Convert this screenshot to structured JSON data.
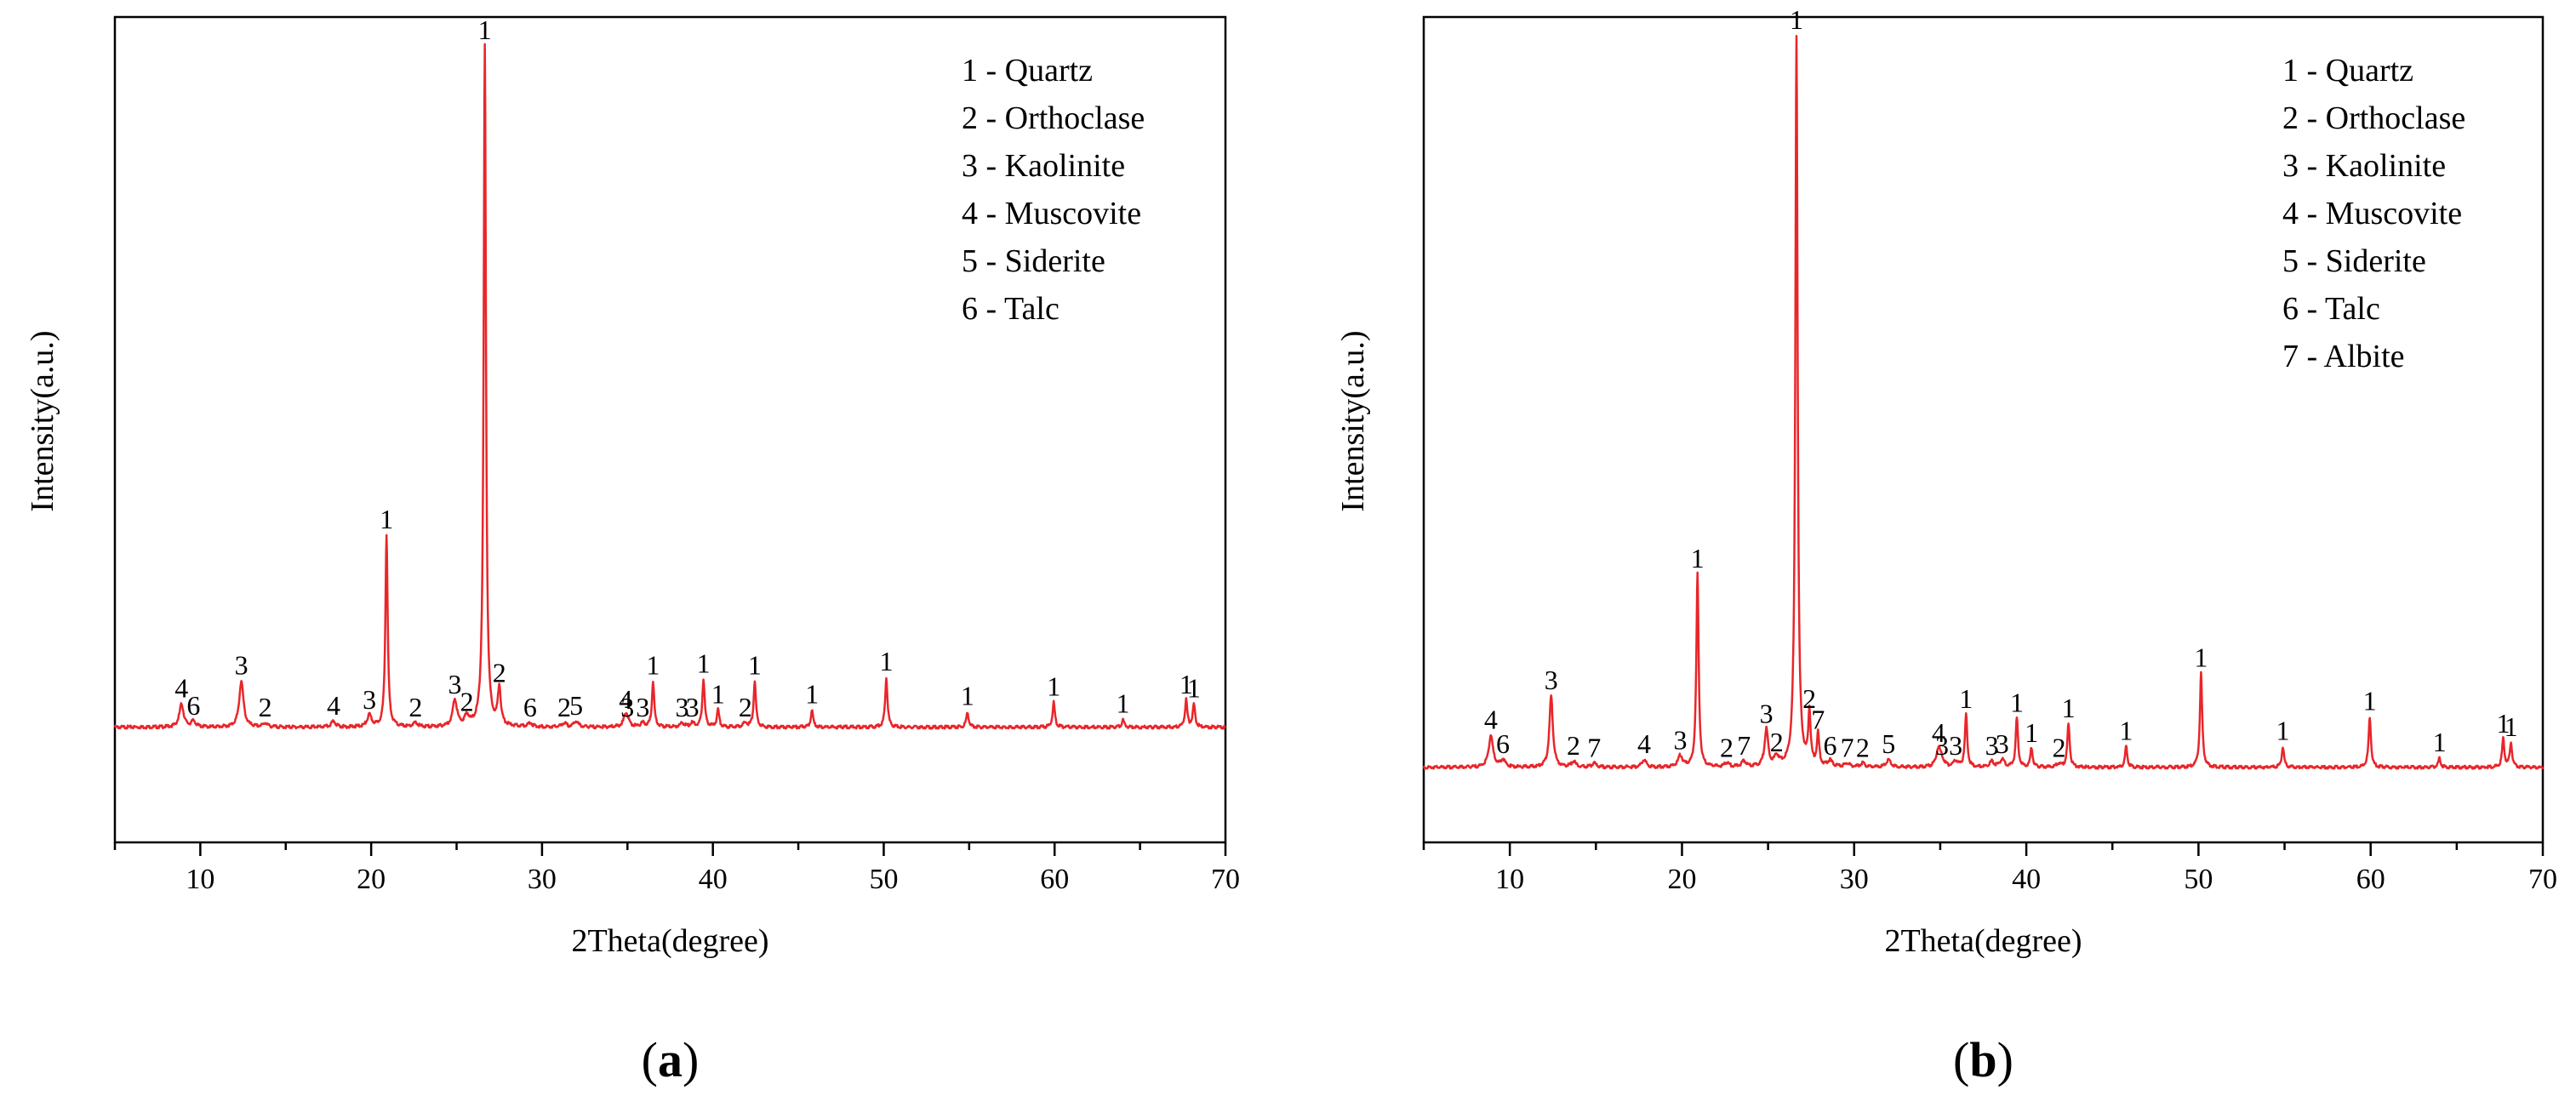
{
  "chart_data": [
    {
      "id": "a",
      "type": "line",
      "panel_label": "(a)",
      "panel_letter": "a",
      "xlabel": "2Theta(degree)",
      "ylabel": "Intensity(a.u.)",
      "xlim": [
        5,
        70
      ],
      "ylim": [
        -6,
        37
      ],
      "xticks": [
        10,
        20,
        30,
        40,
        50,
        60,
        70
      ],
      "grid": false,
      "line_color": "#e8262a",
      "legend_position": "top-right",
      "legend": [
        "1 - Quartz",
        "2 - Orthoclase",
        "3 - Kaolinite",
        "4 - Muscovite",
        "5 - Siderite",
        "6 - Talc"
      ],
      "baseline": 0,
      "peaks": [
        {
          "x": 8.9,
          "h": 1.2,
          "w": 0.15,
          "label": "4"
        },
        {
          "x": 9.6,
          "h": 0.3,
          "w": 0.15,
          "label": "6"
        },
        {
          "x": 12.4,
          "h": 2.4,
          "w": 0.15,
          "label": "3"
        },
        {
          "x": 13.8,
          "h": 0.2,
          "w": 0.15,
          "label": "2"
        },
        {
          "x": 17.8,
          "h": 0.3,
          "w": 0.15,
          "label": "4"
        },
        {
          "x": 19.9,
          "h": 0.6,
          "w": 0.15,
          "label": "3"
        },
        {
          "x": 20.9,
          "h": 10.0,
          "w": 0.08,
          "label": "1"
        },
        {
          "x": 22.6,
          "h": 0.2,
          "w": 0.15,
          "label": "2"
        },
        {
          "x": 24.9,
          "h": 1.4,
          "w": 0.15,
          "label": "3"
        },
        {
          "x": 25.6,
          "h": 0.5,
          "w": 0.15,
          "label": "2"
        },
        {
          "x": 26.65,
          "h": 35.5,
          "w": 0.08,
          "label": "1"
        },
        {
          "x": 27.5,
          "h": 2.0,
          "w": 0.1,
          "label": "2"
        },
        {
          "x": 29.3,
          "h": 0.2,
          "w": 0.15,
          "label": "6"
        },
        {
          "x": 31.3,
          "h": 0.2,
          "w": 0.15,
          "label": "2"
        },
        {
          "x": 32.0,
          "h": 0.3,
          "w": 0.15,
          "label": "5"
        },
        {
          "x": 34.9,
          "h": 0.6,
          "w": 0.15,
          "label": "4"
        },
        {
          "x": 35.0,
          "h": 0.2,
          "w": 0.15,
          "label": "3"
        },
        {
          "x": 35.9,
          "h": 0.2,
          "w": 0.15,
          "label": "3"
        },
        {
          "x": 36.5,
          "h": 2.4,
          "w": 0.08,
          "label": "1"
        },
        {
          "x": 38.2,
          "h": 0.2,
          "w": 0.15,
          "label": "3"
        },
        {
          "x": 38.8,
          "h": 0.2,
          "w": 0.15,
          "label": "3"
        },
        {
          "x": 39.45,
          "h": 2.5,
          "w": 0.08,
          "label": "1"
        },
        {
          "x": 40.3,
          "h": 0.9,
          "w": 0.08,
          "label": "1"
        },
        {
          "x": 41.9,
          "h": 0.2,
          "w": 0.15,
          "label": "2"
        },
        {
          "x": 42.45,
          "h": 2.4,
          "w": 0.08,
          "label": "1"
        },
        {
          "x": 45.8,
          "h": 0.9,
          "w": 0.08,
          "label": "1"
        },
        {
          "x": 50.15,
          "h": 2.6,
          "w": 0.08,
          "label": "1"
        },
        {
          "x": 54.9,
          "h": 0.8,
          "w": 0.08,
          "label": "1"
        },
        {
          "x": 59.95,
          "h": 1.3,
          "w": 0.08,
          "label": "1"
        },
        {
          "x": 64.0,
          "h": 0.4,
          "w": 0.08,
          "label": "1"
        },
        {
          "x": 67.7,
          "h": 1.4,
          "w": 0.08,
          "label": "1"
        },
        {
          "x": 68.15,
          "h": 1.2,
          "w": 0.08,
          "label": "1"
        }
      ]
    },
    {
      "id": "b",
      "type": "line",
      "panel_label": "(b)",
      "panel_letter": "b",
      "xlabel": "2Theta(degree)",
      "ylabel": "Intensity(a.u.)",
      "xlim": [
        5,
        70
      ],
      "ylim": [
        -4,
        40
      ],
      "xticks": [
        10,
        20,
        30,
        40,
        50,
        60,
        70
      ],
      "grid": false,
      "line_color": "#e8262a",
      "legend_position": "top-right",
      "legend": [
        "1 - Quartz",
        "2 - Orthoclase",
        "3 - Kaolinite",
        "4 - Muscovite",
        "5 - Siderite",
        "6 - Talc",
        "7 - Albite"
      ],
      "baseline": 0,
      "peaks": [
        {
          "x": 8.9,
          "h": 1.7,
          "w": 0.15,
          "label": "4"
        },
        {
          "x": 9.6,
          "h": 0.4,
          "w": 0.15,
          "label": "6"
        },
        {
          "x": 12.4,
          "h": 3.8,
          "w": 0.12,
          "label": "3"
        },
        {
          "x": 13.7,
          "h": 0.3,
          "w": 0.15,
          "label": "2"
        },
        {
          "x": 14.9,
          "h": 0.2,
          "w": 0.15,
          "label": "7"
        },
        {
          "x": 17.8,
          "h": 0.4,
          "w": 0.15,
          "label": "4"
        },
        {
          "x": 19.9,
          "h": 0.6,
          "w": 0.15,
          "label": "3"
        },
        {
          "x": 20.9,
          "h": 10.3,
          "w": 0.08,
          "label": "1"
        },
        {
          "x": 22.6,
          "h": 0.2,
          "w": 0.15,
          "label": "2"
        },
        {
          "x": 23.6,
          "h": 0.3,
          "w": 0.15,
          "label": "7"
        },
        {
          "x": 24.9,
          "h": 2.0,
          "w": 0.12,
          "label": "3"
        },
        {
          "x": 25.5,
          "h": 0.5,
          "w": 0.15,
          "label": "2"
        },
        {
          "x": 26.65,
          "h": 39.0,
          "w": 0.08,
          "label": "1"
        },
        {
          "x": 27.4,
          "h": 2.8,
          "w": 0.08,
          "label": "2"
        },
        {
          "x": 27.9,
          "h": 1.7,
          "w": 0.08,
          "label": "7"
        },
        {
          "x": 28.6,
          "h": 0.3,
          "w": 0.15,
          "label": "6"
        },
        {
          "x": 29.6,
          "h": 0.2,
          "w": 0.15,
          "label": "7"
        },
        {
          "x": 30.5,
          "h": 0.2,
          "w": 0.15,
          "label": "2"
        },
        {
          "x": 32.0,
          "h": 0.4,
          "w": 0.15,
          "label": "5"
        },
        {
          "x": 34.9,
          "h": 1.0,
          "w": 0.15,
          "label": "4"
        },
        {
          "x": 35.1,
          "h": 0.3,
          "w": 0.15,
          "label": "3"
        },
        {
          "x": 35.9,
          "h": 0.3,
          "w": 0.15,
          "label": "3"
        },
        {
          "x": 36.5,
          "h": 2.8,
          "w": 0.08,
          "label": "1"
        },
        {
          "x": 38.0,
          "h": 0.3,
          "w": 0.15,
          "label": "3"
        },
        {
          "x": 38.6,
          "h": 0.4,
          "w": 0.15,
          "label": "3"
        },
        {
          "x": 39.45,
          "h": 2.6,
          "w": 0.08,
          "label": "1"
        },
        {
          "x": 40.3,
          "h": 1.0,
          "w": 0.08,
          "label": "1"
        },
        {
          "x": 41.9,
          "h": 0.2,
          "w": 0.15,
          "label": "2"
        },
        {
          "x": 42.45,
          "h": 2.3,
          "w": 0.08,
          "label": "1"
        },
        {
          "x": 45.8,
          "h": 1.1,
          "w": 0.08,
          "label": "1"
        },
        {
          "x": 50.15,
          "h": 5.0,
          "w": 0.08,
          "label": "1"
        },
        {
          "x": 54.9,
          "h": 1.1,
          "w": 0.08,
          "label": "1"
        },
        {
          "x": 59.95,
          "h": 2.7,
          "w": 0.08,
          "label": "1"
        },
        {
          "x": 64.0,
          "h": 0.5,
          "w": 0.08,
          "label": "1"
        },
        {
          "x": 67.7,
          "h": 1.5,
          "w": 0.08,
          "label": "1"
        },
        {
          "x": 68.15,
          "h": 1.3,
          "w": 0.08,
          "label": "1"
        }
      ]
    }
  ]
}
